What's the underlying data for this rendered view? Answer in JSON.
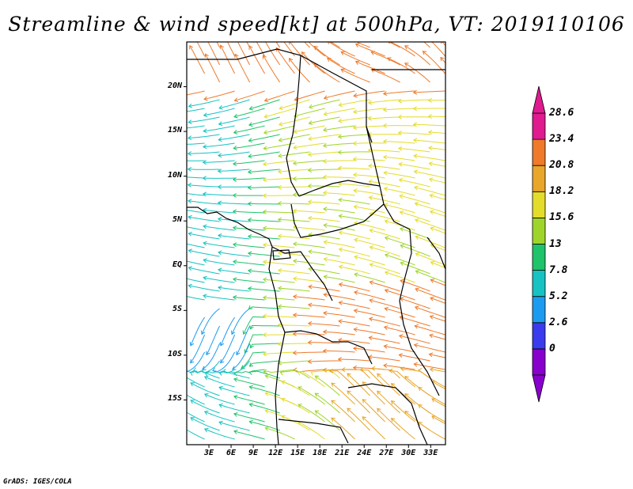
{
  "title": "Streamline & wind speed[kt] at 500hPa, VT: 2019110106",
  "footer": "GrADS: IGES/COLA",
  "map": {
    "lat_labels": [
      "20N",
      "15N",
      "10N",
      "5N",
      "EQ",
      "5S",
      "10S",
      "15S"
    ],
    "lon_labels": [
      "3E",
      "6E",
      "9E",
      "12E",
      "15E",
      "18E",
      "21E",
      "24E",
      "27E",
      "30E",
      "33E"
    ],
    "lon_range": [
      0,
      35
    ],
    "lat_range": [
      -20,
      25
    ]
  },
  "colorbar": {
    "labels": [
      "28.6",
      "23.4",
      "20.8",
      "18.2",
      "15.6",
      "13",
      "7.8",
      "5.2",
      "2.6",
      "0"
    ],
    "colors": [
      "#8800cc",
      "#3b3bee",
      "#1b9cf0",
      "#16c2c2",
      "#1ec36a",
      "#9fd52a",
      "#e4dc2a",
      "#e8a62a",
      "#ee7a2a",
      "#e01a8f"
    ]
  }
}
